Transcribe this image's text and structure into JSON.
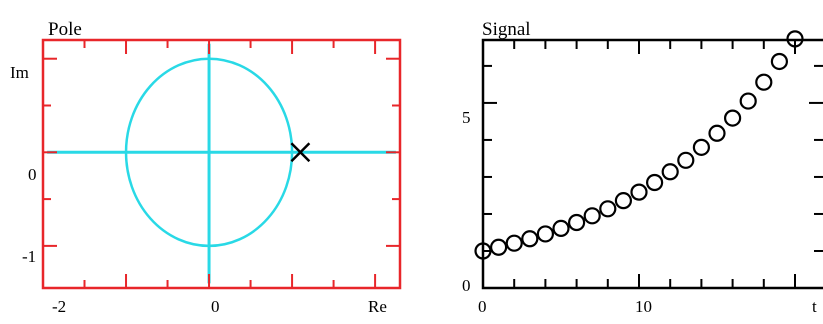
{
  "chart_data": [
    {
      "type": "scatter",
      "title": "Pole",
      "xlabel": "Re",
      "ylabel": "Im",
      "xlim": [
        -2,
        2.3
      ],
      "ylim": [
        -1.45,
        1.2
      ],
      "x_ticks": [
        "-2",
        "0"
      ],
      "y_ticks": [
        "0",
        "-1"
      ],
      "frame_color": "#e8262a",
      "curve_color": "#29d9e6",
      "unit_circle": {
        "center": [
          0,
          0
        ],
        "radius": 1
      },
      "poles": [
        {
          "x": 1.1,
          "y": 0,
          "marker": "x"
        }
      ]
    },
    {
      "type": "scatter",
      "title": "Signal",
      "xlabel": "t",
      "ylabel": "",
      "xlim": [
        0,
        22
      ],
      "ylim": [
        0,
        6.7
      ],
      "x_ticks": [
        "0",
        "10"
      ],
      "y_ticks": [
        "5",
        "0"
      ],
      "frame_color": "#000000",
      "marker": "open-circle",
      "series": [
        {
          "values": [
            1.0,
            1.1,
            1.21,
            1.33,
            1.46,
            1.61,
            1.77,
            1.95,
            2.14,
            2.36,
            2.59,
            2.85,
            3.14,
            3.45,
            3.8,
            4.18,
            4.59,
            5.05,
            5.56,
            6.12,
            6.73
          ]
        }
      ]
    }
  ]
}
